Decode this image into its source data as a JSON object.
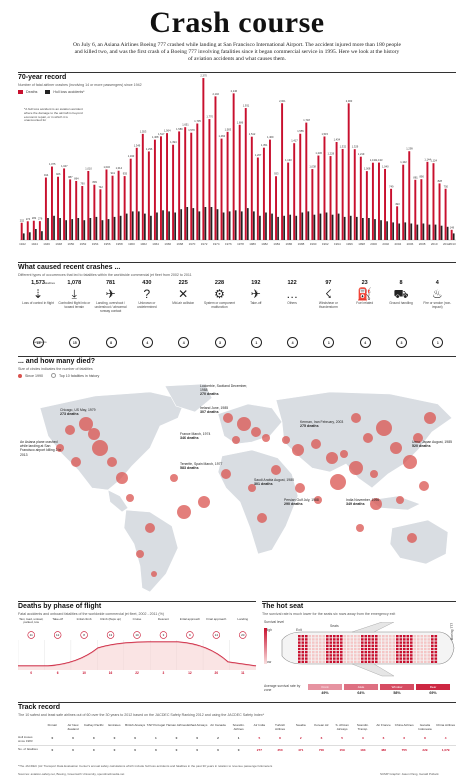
{
  "header": {
    "title": "Crash course",
    "intro": "On July 6, an Asiana Airlines Boeing 777 crashed while landing at San Francisco International Airport. The accident injured more than 180 people and killed two, and was the first crash of a Boeing 777 involving fatalities since it began commercial service in 1995. Here we look at the history of aviation accidents and what causes them."
  },
  "seventy_year": {
    "title": "70-year record",
    "subtitle": "Number of fatal airliner crashes (involving 14 or more passengers) since 1942",
    "legend_deaths": "Deaths",
    "legend_hull": "Hull loss accidents*",
    "footnote": "*A hull loss accident is an aviation accident where the damage to the aircraft is beyond economic repair, or in which it is unaccounted for",
    "colors": {
      "bar": "#c8102e",
      "dark": "#222222"
    }
  },
  "chart_data": {
    "type": "bar",
    "categories": [
      "1942",
      "1943",
      "1944",
      "1945",
      "1946",
      "1947",
      "1948",
      "1949",
      "1950",
      "1951",
      "1952",
      "1953",
      "1954",
      "1955",
      "1956",
      "1957",
      "1958",
      "1959",
      "1960",
      "1961",
      "1962",
      "1963",
      "1964",
      "1965",
      "1966",
      "1967",
      "1968",
      "1969",
      "1970",
      "1971",
      "1972",
      "1973",
      "1974",
      "1975",
      "1976",
      "1977",
      "1978",
      "1979",
      "1980",
      "1981",
      "1982",
      "1983",
      "1984",
      "1985",
      "1986",
      "1987",
      "1988",
      "1989",
      "1990",
      "1991",
      "1992",
      "1993",
      "1994",
      "1995",
      "1996",
      "1997",
      "1998",
      "1999",
      "2000",
      "2001",
      "2002",
      "2003",
      "2004",
      "2005",
      "2006",
      "2007",
      "2008",
      "2009",
      "2010",
      "2011",
      "2012",
      "2013"
    ],
    "values": [
      252,
      274,
      282,
      276,
      914,
      1075,
      926,
      1047,
      887,
      864,
      790,
      1010,
      809,
      742,
      1032,
      941,
      1014,
      935,
      1190,
      1349,
      1553,
      1296,
      1468,
      1517,
      1564,
      1394,
      1589,
      1651,
      1570,
      1705,
      2370,
      1770,
      2102,
      1484,
      1583,
      2146,
      1686,
      1931,
      1512,
      1207,
      1351,
      1469,
      933,
      2001,
      1133,
      1417,
      1555,
      1718,
      1038,
      1236,
      1515,
      1228,
      1434,
      1332,
      2000,
      1329,
      1219,
      1008,
      1131,
      1133,
      1040,
      749,
      493,
      1102,
      1299,
      881,
      890,
      1144,
      1124,
      828,
      750,
      149
    ],
    "labels": [
      "252",
      "274",
      "282",
      "276",
      "914",
      "1,075",
      "926",
      "1,047",
      "887",
      "864",
      "790",
      "1,010",
      "809",
      "742",
      "1,032",
      "941",
      "1,014",
      "935",
      "1,190",
      "1,349",
      "1,553",
      "1,296",
      "1,468",
      "1,517",
      "1,564",
      "1,394",
      "1,589",
      "1,651",
      "1,570",
      "1,705",
      "2,370",
      "1,770",
      "2,102",
      "1,484",
      "1,583",
      "2,146",
      "1,686",
      "1,931",
      "1,512",
      "1,207",
      "1,351",
      "1,469",
      "933",
      "2,001",
      "1,133",
      "1,417",
      "1,555",
      "1,718",
      "1,038",
      "1,236",
      "1,515",
      "1,228",
      "1,434",
      "1,332",
      "2,000",
      "1,329",
      "1,219",
      "1,008",
      "1,131",
      "1,133",
      "1,040",
      "749",
      "493",
      "1,102",
      "1,299",
      "881",
      "890",
      "1,144",
      "1,124",
      "828",
      "750",
      "149"
    ],
    "hull_loss": [
      6,
      7,
      10,
      8,
      20,
      22,
      20,
      18,
      19,
      20,
      18,
      20,
      21,
      18,
      19,
      21,
      22,
      24,
      26,
      26,
      24,
      22,
      25,
      27,
      26,
      25,
      28,
      30,
      29,
      26,
      30,
      30,
      28,
      25,
      26,
      27,
      26,
      29,
      26,
      22,
      25,
      24,
      21,
      22,
      23,
      22,
      25,
      26,
      23,
      24,
      25,
      23,
      24,
      21,
      22,
      21,
      20,
      20,
      19,
      18,
      17,
      16,
      15,
      16,
      15,
      14,
      15,
      14,
      14,
      13,
      12,
      6
    ],
    "xtick_labels": [
      "1942",
      "1944",
      "1946",
      "1948",
      "1950",
      "1952",
      "1954",
      "1956",
      "1958",
      "1960",
      "1962",
      "1964",
      "1966",
      "1968",
      "1970",
      "1972",
      "1974",
      "1976",
      "1978",
      "1980",
      "1982",
      "1984",
      "1986",
      "1988",
      "1990",
      "1992",
      "1994",
      "1996",
      "1998",
      "2000",
      "2002",
      "2004",
      "2006",
      "2008",
      "2010",
      "2012",
      "2013"
    ],
    "ylim": [
      0,
      2400
    ]
  },
  "causes": {
    "title": "What caused recent crashes ...",
    "subtitle": "Different types of occurrences that led to fatalities within the worldwide commercial jet fleet from 2002 to 2011",
    "fatalities_label": "fatalities",
    "accidents_label": "accidents",
    "items": [
      {
        "num": "1,573",
        "label": "Loss of control in flight",
        "acc": "18"
      },
      {
        "num": "1,078",
        "label": "Controlled flight into or toward terrain",
        "acc": "15"
      },
      {
        "num": "781",
        "label": "Landing, overshoot / undershoot / abnormal runway contact",
        "acc": "8"
      },
      {
        "num": "430",
        "label": "Unknown or undetermined",
        "acc": "4"
      },
      {
        "num": "225",
        "label": "Mid-air collision",
        "acc": "4"
      },
      {
        "num": "228",
        "label": "System or component malfunction",
        "acc": "3"
      },
      {
        "num": "192",
        "label": "Take-off",
        "acc": "1"
      },
      {
        "num": "122",
        "label": "Others",
        "acc": "4"
      },
      {
        "num": "97",
        "label": "Windshear or thunderstorm",
        "acc": "1"
      },
      {
        "num": "23",
        "label": "Fuel related",
        "acc": "4"
      },
      {
        "num": "8",
        "label": "Ground handling",
        "acc": "3"
      },
      {
        "num": "4",
        "label": "Fire or smoke (non-impact)",
        "acc": "1"
      }
    ]
  },
  "map": {
    "title": "... and how many died?",
    "subtitle": "Size of circles indicates the number of fatalities",
    "legend_since": "Since 1990",
    "legend_top10": "Top 10 fatalities in history",
    "notes": [
      {
        "text": "Chicago, US May, 1979",
        "deaths": "273 deaths"
      },
      {
        "text": "An Asiana plane crashed while landing at San Francisco airport killing 2 in 2013",
        "deaths": ""
      },
      {
        "text": "Tenerife, Spain March, 1977",
        "deaths": "583 deaths"
      },
      {
        "text": "Lockerbie, Scotland December, 1988",
        "deaths": "270 deaths"
      },
      {
        "text": "Ireland June, 1985",
        "deaths": "307 deaths"
      },
      {
        "text": "France March, 1974",
        "deaths": "346 deaths"
      },
      {
        "text": "Kerman, Iran February, 2003",
        "deaths": "275 deaths"
      },
      {
        "text": "Saudi Arabia August, 1980",
        "deaths": "301 deaths"
      },
      {
        "text": "Persian Gulf July, 1988",
        "deaths": "290 deaths"
      },
      {
        "text": "India November, 1996",
        "deaths": "349 deaths"
      },
      {
        "text": "Ueno, Japan August, 1985",
        "deaths": "520 deaths"
      }
    ],
    "colors": {
      "circle": "#d9534f",
      "map": "#d9dde2"
    }
  },
  "phase": {
    "title": "Deaths by phase of flight",
    "subtitle": "Fatal accidents and onboard fatalities of the worldwide commercial jet fleet, 2002 - 2011 (%)",
    "phases": [
      "Taxi, load, unload, parked, tow",
      "Take-off",
      "Initial climb",
      "Climb (flaps up)",
      "Cruise",
      "Descent",
      "Initial approach",
      "Final approach",
      "Landing"
    ],
    "fatal_acc": [
      "11",
      "12",
      "8",
      "13",
      "10",
      "3",
      "9",
      "14",
      "20"
    ],
    "fatalities": [
      "0",
      "6",
      "10",
      "16",
      "22",
      "3",
      "12",
      "20",
      "11"
    ]
  },
  "hotseat": {
    "title": "The hot seat",
    "subtitle": "The survival rate is much lower for the seats six rows away from the emergency exit",
    "survival_level": "Survival level",
    "levels": [
      "High",
      "Low"
    ],
    "seats": "Seats",
    "exit": "Exit",
    "boeing": "Boeing 777",
    "avg_label": "Average survival rate by zone",
    "zones": [
      "Front",
      "Aisle",
      "Window",
      "Rear"
    ],
    "rates": [
      "49%",
      "64%",
      "58%",
      "69%"
    ],
    "colors": {
      "high": "#c8102e",
      "low": "#f4c6c6"
    }
  },
  "track": {
    "title": "Track record",
    "subtitle": "The 10 safest and least safe airlines out of 60 over the 30 years to 2012 based on the JACDEC Safety Ranking 2012 and using the JACDEC Safety Index*",
    "airlines": [
      "Finnair",
      "Air New Zealand",
      "Cathay Pacific",
      "Emirates",
      "British Airways",
      "TAP Portugal",
      "Hainan Airlines",
      "Etihad Airways",
      "Air Canada",
      "Scandin. Airlines",
      "Air India",
      "Turkish Airlines",
      "Saudia",
      "Korean Air",
      "S. African Airways",
      "Scandin. Transp.",
      "Air France",
      "China Airlines",
      "Garuda Indonesia",
      "China Airlines"
    ],
    "row1_label": "Hull losses since 1983",
    "row2_label": "No. of fatalities",
    "row1": [
      "0",
      "0",
      "0",
      "0",
      "0",
      "1",
      "0",
      "0",
      "2",
      "1",
      "5",
      "8",
      "2",
      "6",
      "5",
      "3",
      "6",
      "6",
      "8",
      "4"
    ],
    "row2": [
      "0",
      "0",
      "0",
      "0",
      "0",
      "0",
      "0",
      "0",
      "0",
      "0",
      "277",
      "250",
      "471",
      "700",
      "159",
      "183",
      "486",
      "755",
      "229",
      "1,079"
    ],
    "footnote": "*The JACDEC (Air Transport Data Evaluation Center's annual safety calculations which include hull loss accidents and fatalities in the past 30 years in relation to revenue passenger kilometers",
    "sources": "Sources: aviation-safety.net, Boeing, Greenwich University, spendmeltmedia.net",
    "credit": "SCMP Graphic: Jason Pang, Gerald Pollock"
  }
}
